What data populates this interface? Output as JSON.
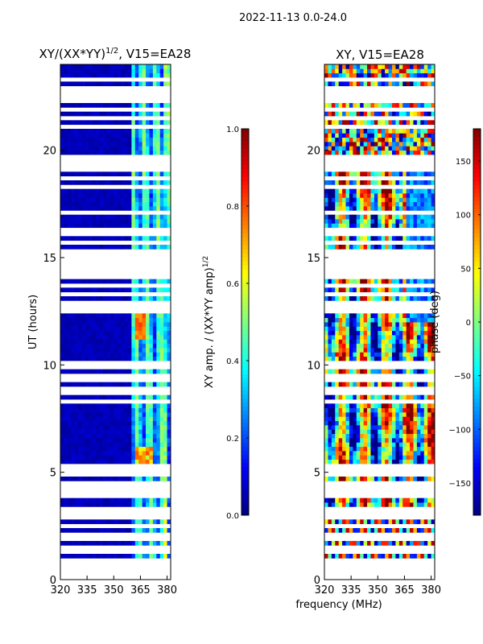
{
  "chart_data": [
    {
      "type": "heatmap",
      "title_text": "XY/(XX*YY)",
      "title_exponent": "1/2",
      "title_suffix": ", V15=EA28",
      "xlabel": "",
      "ylabel": "UT (hours)",
      "xlim": [
        320,
        382
      ],
      "ylim": [
        0,
        24
      ],
      "x_ticks": [
        320,
        335,
        350,
        365,
        380
      ],
      "y_ticks": [
        0,
        5,
        10,
        15,
        20
      ],
      "colormap": "jet",
      "data_note": "normalized cross-correlation amplitude; mostly near 0 below 362 MHz, ~0.3-0.5 in 362-380 MHz band with peaks ~0.8 near 11.8 UT and 5.5 UT",
      "colorbar": {
        "label_text": "XY amp. / (XX*YY amp)",
        "label_exponent": "1/2",
        "range": [
          0.0,
          1.0
        ],
        "ticks": [
          "0.0",
          "0.2",
          "0.4",
          "0.6",
          "0.8",
          "1.0"
        ]
      }
    },
    {
      "type": "heatmap",
      "title_text": "XY, V15=EA28",
      "xlabel": "frequency (MHz)",
      "ylabel": "",
      "xlim": [
        320,
        382
      ],
      "ylim": [
        0,
        24
      ],
      "x_ticks": [
        320,
        335,
        350,
        365,
        380
      ],
      "y_ticks": [
        0,
        5,
        10,
        15,
        20
      ],
      "colormap": "jet",
      "data_note": "cross-correlation phase in degrees; noisy random above ~20 UT, banded structure below",
      "colorbar": {
        "label_text": "phase (deg)",
        "range": [
          -180,
          180
        ],
        "ticks": [
          "−150",
          "−100",
          "−50",
          "0",
          "50",
          "100",
          "150"
        ]
      }
    }
  ],
  "suptitle": "2022-11-13 0.0-24.0",
  "blank_rows_hours": [
    0.15,
    0.4,
    0.65,
    0.95,
    1.25,
    1.55,
    1.85,
    2.15,
    2.55,
    2.9,
    3.1,
    3.35,
    3.6,
    3.85,
    4.1,
    4.35,
    4.6,
    4.85,
    5.05,
    5.2,
    5.35,
    8.3,
    8.65,
    8.85,
    9.4,
    9.85,
    10.05,
    12.4,
    12.6,
    12.85,
    13.3,
    13.7,
    14.05,
    14.4,
    14.75,
    15.0,
    15.35,
    15.7,
    16.0,
    16.4,
    16.8,
    17.2,
    17.6,
    18.0,
    18.35,
    18.7,
    19.0,
    19.3,
    19.55,
    19.75,
    20.6,
    21.05,
    21.5,
    21.95,
    22.4,
    22.5,
    22.6,
    22.85,
    23.3,
    23.6
  ]
}
